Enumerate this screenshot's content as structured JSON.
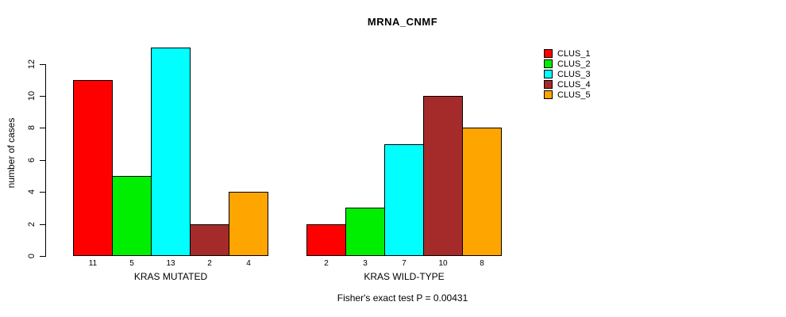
{
  "title": "MRNA_CNMF",
  "footer": "Fisher's exact test P = 0.00431",
  "chart_data": {
    "type": "bar",
    "title": "MRNA_CNMF",
    "xlabel": "",
    "ylabel": "number of cases",
    "ylim": [
      0,
      13
    ],
    "yticks": [
      0,
      2,
      4,
      6,
      8,
      10,
      12
    ],
    "grid": "off",
    "legend_position": "right",
    "categories": [
      "KRAS MUTATED",
      "KRAS WILD-TYPE"
    ],
    "series": [
      {
        "name": "CLUS_1",
        "color": "#FF0000",
        "values": [
          11,
          2
        ]
      },
      {
        "name": "CLUS_2",
        "color": "#00EE00",
        "values": [
          5,
          3
        ]
      },
      {
        "name": "CLUS_3",
        "color": "#00FFFF",
        "values": [
          13,
          7
        ]
      },
      {
        "name": "CLUS_4",
        "color": "#A52A2A",
        "values": [
          2,
          10
        ]
      },
      {
        "name": "CLUS_5",
        "color": "#FFA500",
        "values": [
          4,
          8
        ]
      }
    ],
    "bar_value_labels": {
      "KRAS MUTATED": [
        11,
        5,
        13,
        2,
        4
      ],
      "KRAS WILD-TYPE": [
        2,
        3,
        7,
        10,
        8
      ]
    },
    "annotation": "Fisher's exact test P = 0.00431"
  }
}
